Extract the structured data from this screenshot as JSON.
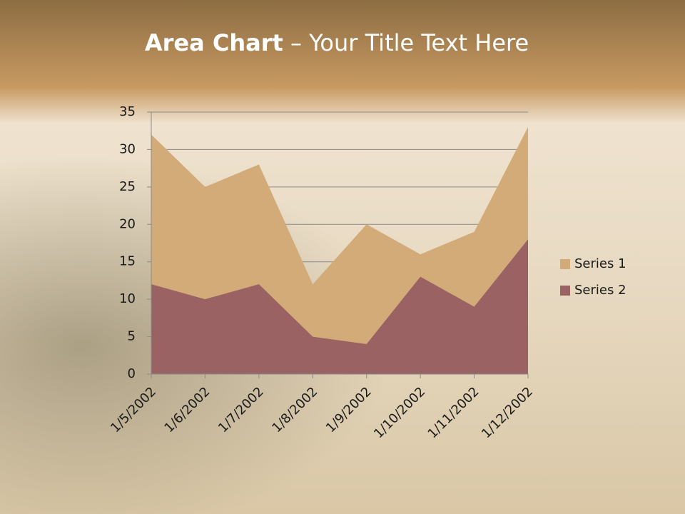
{
  "chart_data": {
    "type": "area",
    "title": {
      "bold": "Area Chart",
      "rest": "– Your Title Text Here"
    },
    "categories": [
      "1/5/2002",
      "1/6/2002",
      "1/7/2002",
      "1/8/2002",
      "1/9/2002",
      "1/10/2002",
      "1/11/2002",
      "1/12/2002"
    ],
    "series": [
      {
        "name": "Series 1",
        "color": "#d3ab78",
        "values": [
          32,
          25,
          28,
          12,
          20,
          16,
          19,
          33
        ]
      },
      {
        "name": "Series 2",
        "color": "#9a6262",
        "values": [
          12,
          10,
          12,
          5,
          4,
          13,
          9,
          18
        ]
      }
    ],
    "ylim": [
      0,
      35
    ],
    "yticks": [
      0,
      5,
      10,
      15,
      20,
      25,
      30,
      35
    ],
    "grid": true,
    "legend": "right"
  }
}
